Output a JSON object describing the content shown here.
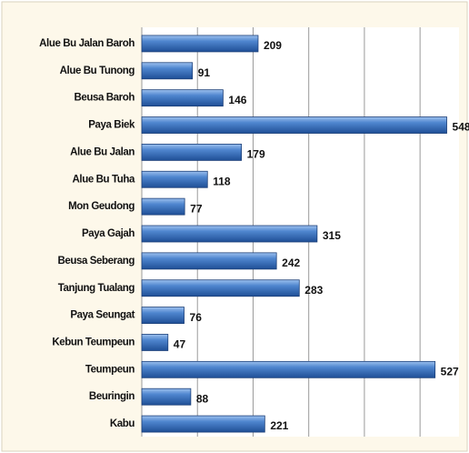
{
  "chart_data": {
    "type": "bar",
    "orientation": "horizontal",
    "categories": [
      "Alue Bu Jalan Baroh",
      "Alue Bu Tunong",
      "Beusa Baroh",
      "Paya Biek",
      "Alue Bu Jalan",
      "Alue Bu Tuha",
      "Mon Geudong",
      "Paya Gajah",
      "Beusa Seberang",
      "Tanjung Tualang",
      "Paya Seungat",
      "Kebun Teumpeun",
      "Teumpeun",
      "Beuringin",
      "Kabu"
    ],
    "values": [
      209,
      91,
      146,
      548,
      179,
      118,
      77,
      315,
      242,
      283,
      76,
      47,
      527,
      88,
      221
    ],
    "color": "#3f73b8",
    "xlim": [
      0,
      570
    ],
    "xticks": [
      0,
      100,
      200,
      300,
      400,
      500
    ],
    "grid": true
  }
}
